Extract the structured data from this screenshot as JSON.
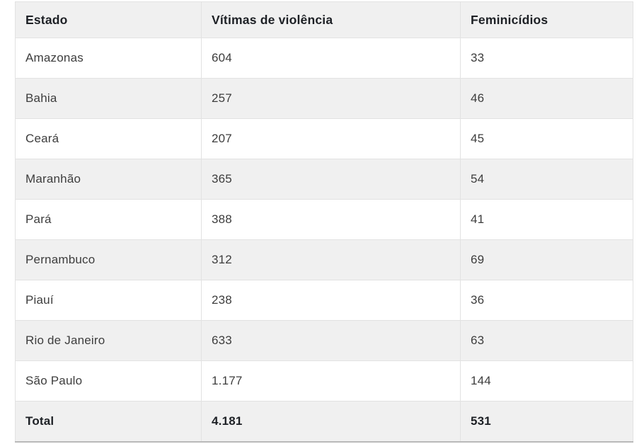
{
  "colors": {
    "page_bg": "#ffffff",
    "row_bg": "#ffffff",
    "stripe_bg": "#f0f0f0",
    "border": "#e2e2e2",
    "bottom_border": "#b9b9b9",
    "header_text": "#1d2025",
    "body_text": "#3d3d3d"
  },
  "table": {
    "headers": [
      {
        "id": "estado",
        "label": "Estado"
      },
      {
        "id": "vitimas",
        "label": "Vítimas de violência"
      },
      {
        "id": "feminicidios",
        "label": "Feminicídios"
      }
    ],
    "rows": [
      {
        "estado": "Amazonas",
        "vitimas": "604",
        "feminicidios": "33"
      },
      {
        "estado": "Bahia",
        "vitimas": "257",
        "feminicidios": "46"
      },
      {
        "estado": "Ceará",
        "vitimas": "207",
        "feminicidios": "45"
      },
      {
        "estado": "Maranhão",
        "vitimas": "365",
        "feminicidios": "54"
      },
      {
        "estado": "Pará",
        "vitimas": "388",
        "feminicidios": "41"
      },
      {
        "estado": "Pernambuco",
        "vitimas": "312",
        "feminicidios": "69"
      },
      {
        "estado": "Piauí",
        "vitimas": "238",
        "feminicidios": "36"
      },
      {
        "estado": "Rio de Janeiro",
        "vitimas": "633",
        "feminicidios": "63"
      },
      {
        "estado": "São Paulo",
        "vitimas": "1.177",
        "feminicidios": "144"
      }
    ],
    "total": {
      "estado": "Total",
      "vitimas": "4.181",
      "feminicidios": "531"
    }
  },
  "chart_data": {
    "type": "table",
    "columns": [
      "Estado",
      "Vítimas de violência",
      "Feminicídios"
    ],
    "rows": [
      [
        "Amazonas",
        604,
        33
      ],
      [
        "Bahia",
        257,
        46
      ],
      [
        "Ceará",
        207,
        45
      ],
      [
        "Maranhão",
        365,
        54
      ],
      [
        "Pará",
        388,
        41
      ],
      [
        "Pernambuco",
        312,
        69
      ],
      [
        "Piauí",
        238,
        36
      ],
      [
        "Rio de Janeiro",
        633,
        63
      ],
      [
        "São Paulo",
        1177,
        144
      ]
    ],
    "totals": [
      "Total",
      4181,
      531
    ]
  }
}
